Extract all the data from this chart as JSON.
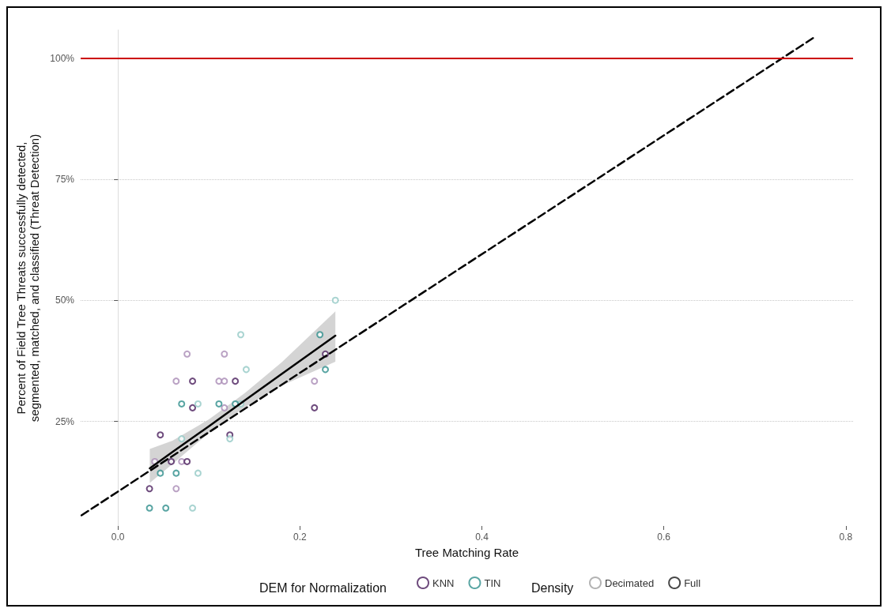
{
  "chart_data": {
    "type": "scatter",
    "xlabel": "Tree Matching Rate",
    "ylabel": "Percent of Field Tree Threats successfully detected,\nsegmented, matched, and classified (Threat Detection)",
    "legend_title": "DEM for Normalization",
    "annotations": [
      "Density"
    ],
    "xlim": [
      -0.041,
      0.808
    ],
    "ylim": [
      3.4,
      105.8
    ],
    "xticks": [
      {
        "value": 0,
        "label": "0.0"
      },
      0.2,
      0.4,
      0.6,
      0.8
    ],
    "yticks": [
      {
        "value": 25,
        "label": "25%"
      },
      {
        "value": 50,
        "label": "50%"
      },
      {
        "value": 75,
        "label": "75%"
      },
      {
        "value": 100,
        "label": "100%"
      }
    ],
    "grid": "y",
    "legend": "bottom",
    "marker": "circle",
    "ref_lines": [
      {
        "axis": "y",
        "value": 100,
        "color": "#cc0000"
      }
    ],
    "series": [
      {
        "color": "#a98bb5",
        "x": [
          0.076,
          0.117,
          0.064,
          0.111,
          0.117,
          0.216,
          0.117,
          0.0405,
          0.07,
          0.064
        ],
        "values": [
          38.9,
          38.9,
          33.3,
          33.3,
          33.3,
          33.3,
          27.8,
          16.7,
          16.7,
          11.1
        ]
      },
      {
        "color": "#4a1e5c",
        "x": [
          0.228,
          0.082,
          0.129,
          0.082,
          0.216,
          0.0466,
          0.123,
          0.0586,
          0.076,
          0.0347
        ],
        "values": [
          38.9,
          33.3,
          33.3,
          27.8,
          27.8,
          22.2,
          22.2,
          16.7,
          16.7,
          11.1
        ]
      },
      {
        "color": "#93c9c6",
        "x": [
          0.239,
          0.135,
          0.141,
          0.088,
          0.135,
          0.07,
          0.123,
          0.088,
          0.082
        ],
        "values": [
          50,
          42.9,
          35.7,
          28.6,
          28.6,
          21.4,
          21.4,
          14.3,
          7.1
        ]
      },
      {
        "color": "#2f8f8c",
        "x": [
          0.222,
          0.228,
          0.07,
          0.111,
          0.129,
          0.0466,
          0.064,
          0.0347,
          0.0526
        ],
        "values": [
          42.9,
          35.7,
          28.6,
          28.6,
          28.6,
          14.3,
          14.3,
          7.1,
          7.1
        ]
      },
      {
        "type": "line",
        "color": "#000000",
        "x": [
          0.035,
          0.06,
          0.1,
          0.14,
          0.18,
          0.239
        ],
        "values": [
          15.3,
          18.7,
          24.0,
          29.4,
          34.8,
          42.7
        ],
        "marker": "none",
        "lower": [
          12.3,
          16.2,
          22.6,
          28.0,
          32.4,
          37.3
        ],
        "upper": [
          19.3,
          21.0,
          25.4,
          30.9,
          37.2,
          47.7
        ]
      },
      {
        "type": "line",
        "color": "#000000",
        "line_style": "dashed",
        "marker": "none",
        "x": [
          -0.04,
          0.767
        ],
        "values": [
          5.6,
          104.5
        ]
      },
      {
        "name": "KNN",
        "color": "#4a1e5c"
      },
      {
        "name": "TIN",
        "color": "#2f8f8c"
      },
      {
        "name": "Decimated",
        "color": "#a0a0a0"
      },
      {
        "name": "Full",
        "color": "#1a1a1a"
      }
    ]
  }
}
